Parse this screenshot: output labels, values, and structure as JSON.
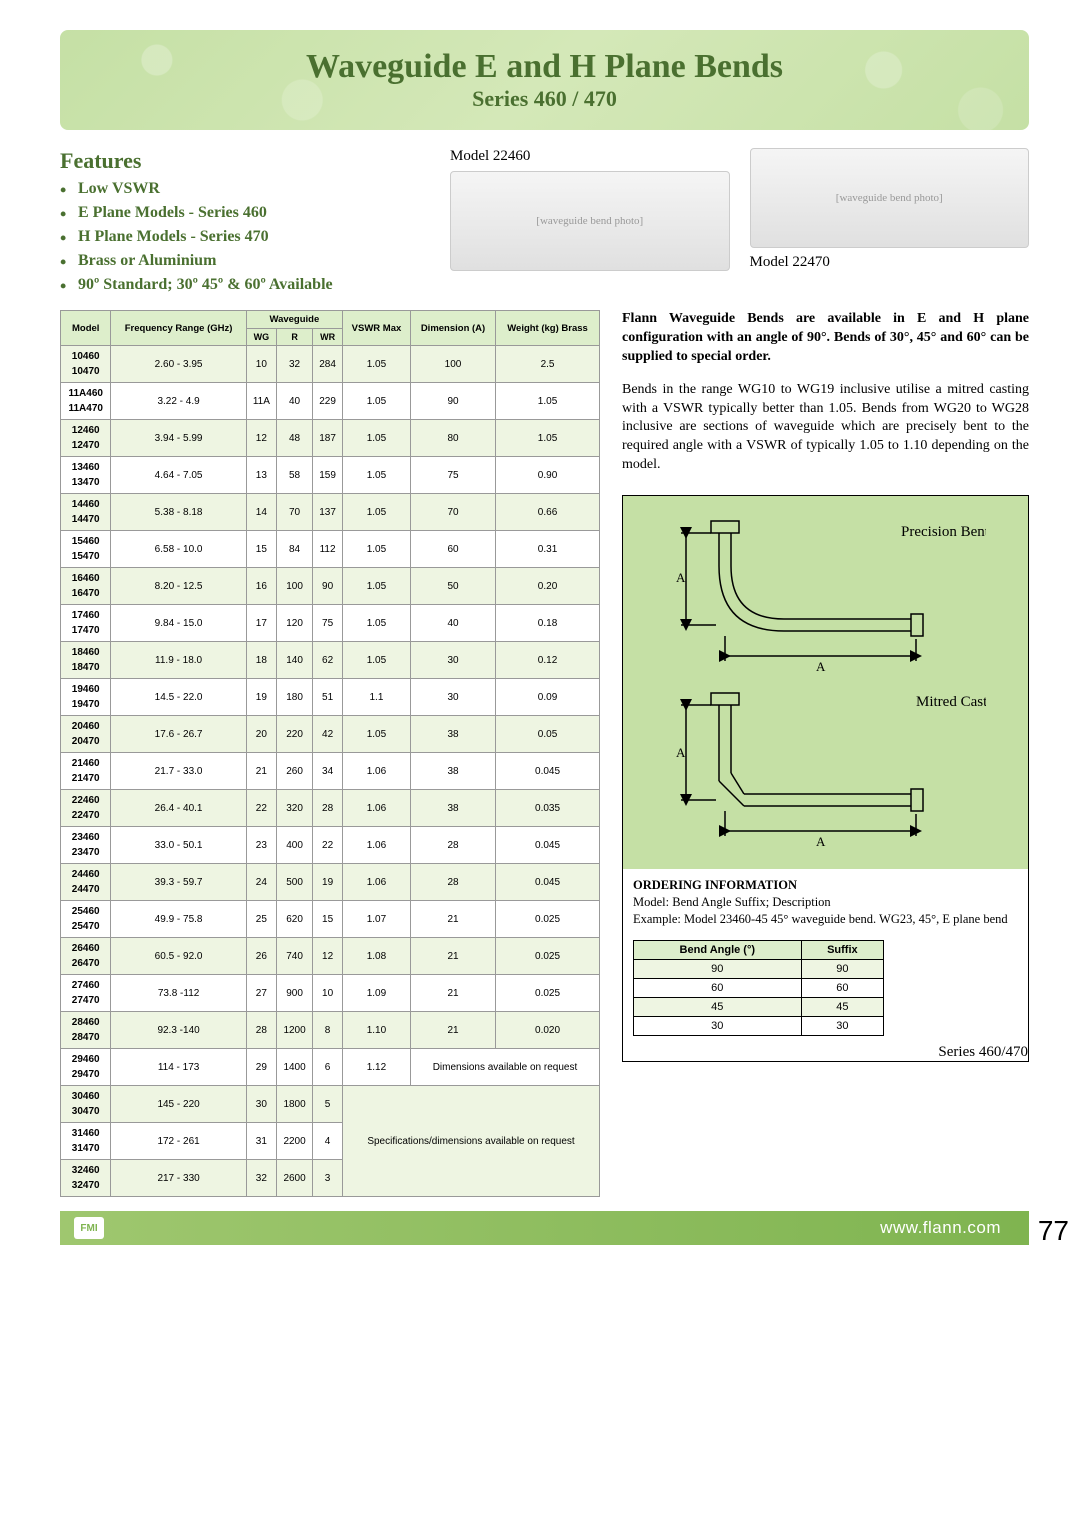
{
  "header": {
    "title": "Waveguide E and H Plane Bends",
    "subtitle": "Series 460 / 470"
  },
  "features": {
    "heading": "Features",
    "items": [
      "Low VSWR",
      "E Plane Models - Series 460",
      "H Plane Models - Series 470",
      "Brass or Aluminium",
      "90º Standard; 30º 45º & 60º Available"
    ]
  },
  "photos": {
    "left_label": "Model 22460",
    "right_label": "Model 22470"
  },
  "table": {
    "headers": {
      "model": "Model",
      "freq": "Frequency Range (GHz)",
      "wg_group": "Waveguide",
      "wg": "WG",
      "r": "R",
      "wr": "WR",
      "vswr": "VSWR Max",
      "dim": "Dimension (A)",
      "weight": "Weight (kg) Brass"
    },
    "rows": [
      {
        "m1": "10460",
        "m2": "10470",
        "freq": "2.60 - 3.95",
        "wg": "10",
        "r": "32",
        "wr": "284",
        "vswr": "1.05",
        "dim": "100",
        "wt": "2.5"
      },
      {
        "m1": "11A460",
        "m2": "11A470",
        "freq": "3.22 - 4.9",
        "wg": "11A",
        "r": "40",
        "wr": "229",
        "vswr": "1.05",
        "dim": "90",
        "wt": "1.05"
      },
      {
        "m1": "12460",
        "m2": "12470",
        "freq": "3.94 - 5.99",
        "wg": "12",
        "r": "48",
        "wr": "187",
        "vswr": "1.05",
        "dim": "80",
        "wt": "1.05"
      },
      {
        "m1": "13460",
        "m2": "13470",
        "freq": "4.64 - 7.05",
        "wg": "13",
        "r": "58",
        "wr": "159",
        "vswr": "1.05",
        "dim": "75",
        "wt": "0.90"
      },
      {
        "m1": "14460",
        "m2": "14470",
        "freq": "5.38 - 8.18",
        "wg": "14",
        "r": "70",
        "wr": "137",
        "vswr": "1.05",
        "dim": "70",
        "wt": "0.66"
      },
      {
        "m1": "15460",
        "m2": "15470",
        "freq": "6.58 - 10.0",
        "wg": "15",
        "r": "84",
        "wr": "112",
        "vswr": "1.05",
        "dim": "60",
        "wt": "0.31"
      },
      {
        "m1": "16460",
        "m2": "16470",
        "freq": "8.20 - 12.5",
        "wg": "16",
        "r": "100",
        "wr": "90",
        "vswr": "1.05",
        "dim": "50",
        "wt": "0.20"
      },
      {
        "m1": "17460",
        "m2": "17470",
        "freq": "9.84 - 15.0",
        "wg": "17",
        "r": "120",
        "wr": "75",
        "vswr": "1.05",
        "dim": "40",
        "wt": "0.18"
      },
      {
        "m1": "18460",
        "m2": "18470",
        "freq": "11.9 - 18.0",
        "wg": "18",
        "r": "140",
        "wr": "62",
        "vswr": "1.05",
        "dim": "30",
        "wt": "0.12"
      },
      {
        "m1": "19460",
        "m2": "19470",
        "freq": "14.5 - 22.0",
        "wg": "19",
        "r": "180",
        "wr": "51",
        "vswr": "1.1",
        "dim": "30",
        "wt": "0.09"
      },
      {
        "m1": "20460",
        "m2": "20470",
        "freq": "17.6 - 26.7",
        "wg": "20",
        "r": "220",
        "wr": "42",
        "vswr": "1.05",
        "dim": "38",
        "wt": "0.05"
      },
      {
        "m1": "21460",
        "m2": "21470",
        "freq": "21.7 - 33.0",
        "wg": "21",
        "r": "260",
        "wr": "34",
        "vswr": "1.06",
        "dim": "38",
        "wt": "0.045"
      },
      {
        "m1": "22460",
        "m2": "22470",
        "freq": "26.4 - 40.1",
        "wg": "22",
        "r": "320",
        "wr": "28",
        "vswr": "1.06",
        "dim": "38",
        "wt": "0.035"
      },
      {
        "m1": "23460",
        "m2": "23470",
        "freq": "33.0 - 50.1",
        "wg": "23",
        "r": "400",
        "wr": "22",
        "vswr": "1.06",
        "dim": "28",
        "wt": "0.045"
      },
      {
        "m1": "24460",
        "m2": "24470",
        "freq": "39.3 - 59.7",
        "wg": "24",
        "r": "500",
        "wr": "19",
        "vswr": "1.06",
        "dim": "28",
        "wt": "0.045"
      },
      {
        "m1": "25460",
        "m2": "25470",
        "freq": "49.9 - 75.8",
        "wg": "25",
        "r": "620",
        "wr": "15",
        "vswr": "1.07",
        "dim": "21",
        "wt": "0.025"
      },
      {
        "m1": "26460",
        "m2": "26470",
        "freq": "60.5 - 92.0",
        "wg": "26",
        "r": "740",
        "wr": "12",
        "vswr": "1.08",
        "dim": "21",
        "wt": "0.025"
      },
      {
        "m1": "27460",
        "m2": "27470",
        "freq": "73.8 -112",
        "wg": "27",
        "r": "900",
        "wr": "10",
        "vswr": "1.09",
        "dim": "21",
        "wt": "0.025"
      },
      {
        "m1": "28460",
        "m2": "28470",
        "freq": "92.3 -140",
        "wg": "28",
        "r": "1200",
        "wr": "8",
        "vswr": "1.10",
        "dim": "21",
        "wt": "0.020"
      },
      {
        "m1": "29460",
        "m2": "29470",
        "freq": "114 - 173",
        "wg": "29",
        "r": "1400",
        "wr": "6",
        "vswr": "1.12",
        "dim_note": "Dimensions available on request"
      },
      {
        "m1": "30460",
        "m2": "30470",
        "freq": "145 - 220",
        "wg": "30",
        "r": "1800",
        "wr": "5",
        "spec_note": "Specifications/dimensions available on request"
      },
      {
        "m1": "31460",
        "m2": "31470",
        "freq": "172 - 261",
        "wg": "31",
        "r": "2200",
        "wr": "4"
      },
      {
        "m1": "32460",
        "m2": "32470",
        "freq": "217 - 330",
        "wg": "32",
        "r": "2600",
        "wr": "3"
      }
    ]
  },
  "description": {
    "para1_bold": "Flann Waveguide Bends are available in E and H plane configuration with an angle of 90°. Bends of 30°, 45° and 60° can be supplied to special order.",
    "para2": "Bends in the range WG10 to WG19 inclusive utilise a mitred casting with a VSWR typically better than 1.05. Bends from WG20 to WG28 inclusive are sections of waveguide which are precisely bent to the required angle with a VSWR of typically 1.05 to 1.10 depending on the model."
  },
  "diagram": {
    "label_top": "Precision Bent",
    "label_bottom": "Mitred Casting",
    "dim_label": "A",
    "colors": {
      "bg": "#c5e0a5",
      "stroke": "#000000",
      "arrow": "#000000"
    }
  },
  "ordering": {
    "heading": "ORDERING INFORMATION",
    "line1": "Model: Bend Angle Suffix; Description",
    "line2": "Example: Model 23460-45  45° waveguide bend. WG23, 45°, E plane bend",
    "suffix_table": {
      "h1": "Bend Angle (°)",
      "h2": "Suffix",
      "rows": [
        [
          "90",
          "90"
        ],
        [
          "60",
          "60"
        ],
        [
          "45",
          "45"
        ],
        [
          "30",
          "30"
        ]
      ]
    },
    "series_label": "Series 460/470"
  },
  "footer": {
    "logo": "FMI",
    "url": "www.flann.com",
    "page": "77"
  },
  "style": {
    "accent_green": "#4a7030",
    "band_green": "#c5e0a5",
    "row_even": "#eef5e2",
    "header_bg": "#ddeecb",
    "footer_grad_a": "#9fc76f",
    "footer_grad_b": "#7fb450"
  }
}
